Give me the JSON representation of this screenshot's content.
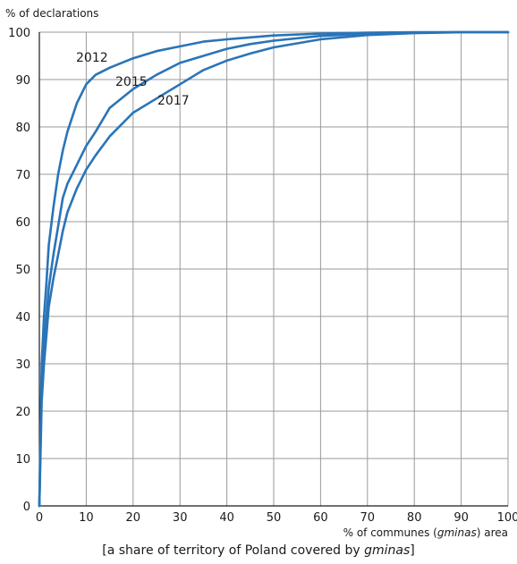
{
  "chart_data": {
    "type": "line",
    "ylabel": "% of declarations",
    "xlabel_prefix": "% of communes (",
    "xlabel_italic": "gminas",
    "xlabel_suffix": ") area",
    "caption_prefix": "[a share of territory of Poland covered by ",
    "caption_italic": "gminas",
    "caption_suffix": "]",
    "xlim": [
      0,
      100
    ],
    "ylim": [
      0,
      100
    ],
    "xticks": [
      0,
      10,
      20,
      30,
      40,
      50,
      60,
      70,
      80,
      90,
      100
    ],
    "yticks": [
      0,
      10,
      20,
      30,
      40,
      50,
      60,
      70,
      80,
      90,
      100
    ],
    "grid": true,
    "line_color": "#2a74b8",
    "series": [
      {
        "name": "2012",
        "x": [
          0,
          0.5,
          1,
          1.5,
          2,
          3,
          4,
          5,
          6,
          8,
          10,
          12,
          15,
          20,
          25,
          30,
          35,
          40,
          50,
          60,
          70,
          80,
          90,
          100
        ],
        "y": [
          0,
          30,
          40,
          47,
          55,
          63,
          70,
          75,
          79,
          85,
          89,
          91,
          92.5,
          94.5,
          96,
          97,
          98,
          98.5,
          99.3,
          99.7,
          99.9,
          100,
          100,
          100
        ]
      },
      {
        "name": "2015",
        "x": [
          0,
          0.5,
          1,
          1.5,
          2,
          3,
          4,
          5,
          6,
          8,
          10,
          12,
          15,
          20,
          25,
          30,
          35,
          40,
          45,
          50,
          60,
          70,
          80,
          90,
          100
        ],
        "y": [
          0,
          27,
          35,
          40,
          46,
          53,
          59,
          65,
          68,
          72,
          76,
          79,
          84,
          88,
          91,
          93.5,
          95,
          96.5,
          97.5,
          98.2,
          99.2,
          99.7,
          99.9,
          100,
          100
        ]
      },
      {
        "name": "2017",
        "x": [
          0,
          0.5,
          1,
          1.5,
          2,
          3,
          4,
          5,
          6,
          8,
          10,
          12,
          15,
          20,
          25,
          30,
          35,
          40,
          45,
          50,
          60,
          70,
          80,
          90,
          100
        ],
        "y": [
          0,
          22,
          30,
          36,
          42,
          48,
          53,
          58,
          62,
          67,
          71,
          74,
          78,
          83,
          86,
          89,
          92,
          94,
          95.5,
          96.8,
          98.5,
          99.4,
          99.8,
          100,
          100
        ]
      }
    ]
  }
}
